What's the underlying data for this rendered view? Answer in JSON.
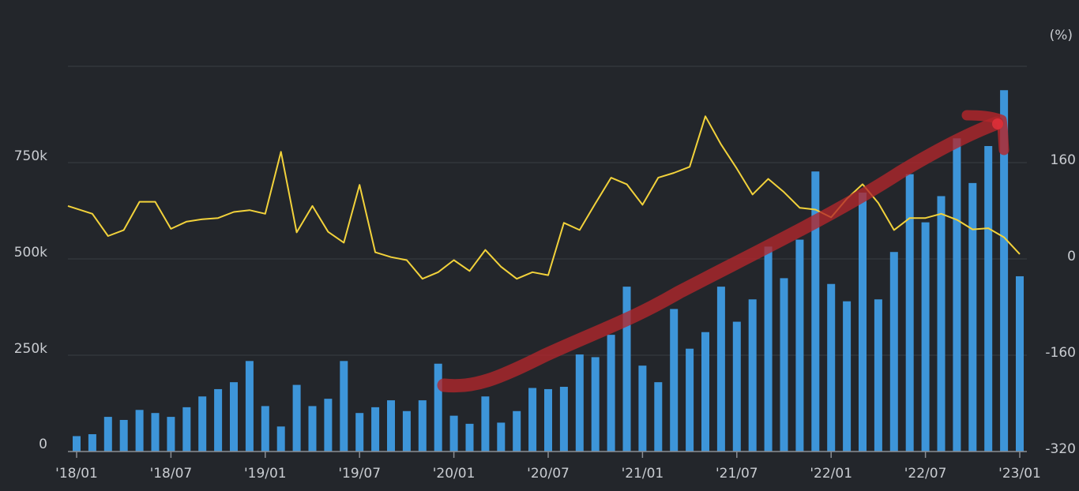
{
  "chart_data": {
    "type": "bar",
    "x_labels": [
      "'18/01",
      "'18/07",
      "'19/01",
      "'19/07",
      "'20/01",
      "'20/07",
      "'21/01",
      "'21/07",
      "'22/01",
      "'22/07",
      "'23/01"
    ],
    "left_axis": {
      "ticks": [
        "0",
        "250k",
        "500k",
        "750k"
      ],
      "tick_values": [
        0,
        250000,
        500000,
        750000
      ],
      "range": [
        0,
        1000000
      ]
    },
    "right_axis": {
      "unit": "(%)",
      "ticks": [
        "-320",
        "-160",
        "0",
        "160"
      ],
      "tick_values": [
        -320,
        -160,
        0,
        160
      ],
      "range": [
        -320,
        320
      ]
    },
    "grid": true,
    "series": [
      {
        "kind": "bar",
        "axis": "left",
        "color": "#3d95d9",
        "values": [
          40000,
          45000,
          90000,
          82000,
          108000,
          100000,
          90000,
          115000,
          143000,
          162000,
          180000,
          235000,
          118000,
          65000,
          173000,
          118000,
          137000,
          235000,
          100000,
          115000,
          133000,
          105000,
          133000,
          228000,
          93000,
          72000,
          143000,
          75000,
          105000,
          165000,
          162000,
          168000,
          252000,
          245000,
          303000,
          428000,
          223000,
          180000,
          370000,
          267000,
          310000,
          428000,
          337000,
          395000,
          532000,
          450000,
          550000,
          727000,
          435000,
          390000,
          672000,
          395000,
          518000,
          720000,
          595000,
          663000,
          813000,
          697000,
          793000,
          938000,
          455000
        ]
      },
      {
        "kind": "line",
        "axis": "right",
        "color": "#f2d23b",
        "values": [
          88,
          75,
          38,
          48,
          95,
          95,
          50,
          62,
          66,
          68,
          78,
          81,
          75,
          178,
          44,
          88,
          45,
          27,
          123,
          11,
          3,
          -2,
          -33,
          -22,
          -2,
          -20,
          15,
          -13,
          -33,
          -22,
          -27,
          60,
          48,
          92,
          135,
          124,
          90,
          135,
          143,
          153,
          237,
          190,
          150,
          107,
          133,
          111,
          85,
          82,
          69,
          100,
          124,
          93,
          48,
          68,
          68,
          75,
          65,
          49,
          51,
          36,
          8
        ]
      }
    ],
    "annotation": {
      "kind": "trend-arrow",
      "color": "#b3262b"
    }
  }
}
